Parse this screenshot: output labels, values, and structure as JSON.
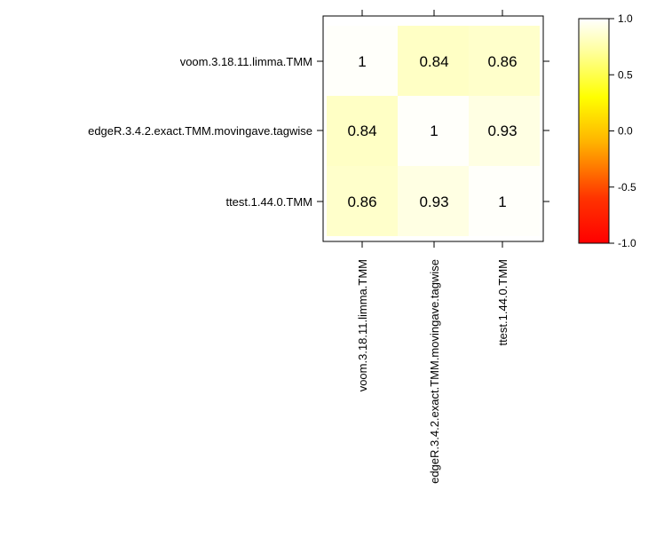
{
  "chart_data": {
    "type": "heatmap",
    "rows": [
      "voom.3.18.11.limma.TMM",
      "edgeR.3.4.2.exact.TMM.movingave.tagwise",
      "ttest.1.44.0.TMM"
    ],
    "columns": [
      "voom.3.18.11.limma.TMM",
      "edgeR.3.4.2.exact.TMM.movingave.tagwise",
      "ttest.1.44.0.TMM"
    ],
    "values": [
      [
        1,
        0.84,
        0.86
      ],
      [
        0.84,
        1,
        0.93
      ],
      [
        0.86,
        0.93,
        1
      ]
    ],
    "value_labels": [
      [
        "1",
        "0.84",
        "0.86"
      ],
      [
        "0.84",
        "1",
        "0.93"
      ],
      [
        "0.86",
        "0.93",
        "1"
      ]
    ],
    "colorbar": {
      "range": [
        -1,
        1
      ],
      "ticks": [
        "1.0",
        "0.5",
        "0.0",
        "-0.5",
        "-1.0"
      ],
      "colors": [
        "#ff0000",
        "#ffff00",
        "#ffffff"
      ]
    }
  }
}
